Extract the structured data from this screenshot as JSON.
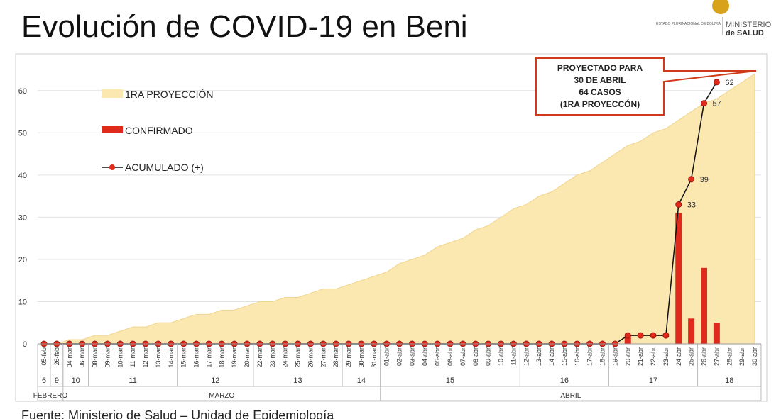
{
  "header": {
    "title": "Evolución de COVID-19 en Beni",
    "logo_small": "ESTADO PLURINACIONAL DE BOLIVIA",
    "logo_ministry": "MINISTERIO",
    "logo_health": "de SALUD"
  },
  "chart_data": {
    "type": "combo",
    "categories": [
      "05-feb",
      "26-feb",
      "04-mar",
      "06-mar",
      "08-mar",
      "09-mar",
      "10-mar",
      "11-mar",
      "12-mar",
      "13-mar",
      "14-mar",
      "15-mar",
      "16-mar",
      "17-mar",
      "18-mar",
      "19-mar",
      "20-mar",
      "22-mar",
      "23-mar",
      "24-mar",
      "25-mar",
      "26-mar",
      "27-mar",
      "28-mar",
      "29-mar",
      "30-mar",
      "31-mar",
      "01-abr",
      "02-abr",
      "03-abr",
      "04-abr",
      "05-abr",
      "06-abr",
      "07-abr",
      "08-abr",
      "09-abr",
      "10-abr",
      "11-abr",
      "12-abr",
      "13-abr",
      "14-abr",
      "15-abr",
      "16-abr",
      "17-abr",
      "18-abr",
      "19-abr",
      "20-abr",
      "21-abr",
      "22-abr",
      "23-abr",
      "24-abr",
      "25-abr",
      "26-abr",
      "27-abr",
      "28-abr",
      "29-abr",
      "30-abr"
    ],
    "series": [
      {
        "name": "1RA PROYECCIÓN",
        "type": "area",
        "color": "#fbe7b0",
        "values": [
          0,
          0,
          1,
          1,
          2,
          2,
          3,
          4,
          4,
          5,
          5,
          6,
          7,
          7,
          8,
          8,
          9,
          10,
          10,
          11,
          11,
          12,
          13,
          13,
          14,
          15,
          16,
          17,
          19,
          20,
          21,
          23,
          24,
          25,
          27,
          28,
          30,
          32,
          33,
          35,
          36,
          38,
          40,
          41,
          43,
          45,
          47,
          48,
          50,
          51,
          53,
          55,
          57,
          58,
          60,
          62,
          64
        ]
      },
      {
        "name": "CONFIRMADO",
        "type": "bar",
        "color": "#e02b1c",
        "values": [
          0,
          0,
          0,
          0,
          0,
          0,
          0,
          0,
          0,
          0,
          0,
          0,
          0,
          0,
          0,
          0,
          0,
          0,
          0,
          0,
          0,
          0,
          0,
          0,
          0,
          0,
          0,
          0,
          0,
          0,
          0,
          0,
          0,
          0,
          0,
          0,
          0,
          0,
          0,
          0,
          0,
          0,
          0,
          0,
          0,
          0,
          2,
          0,
          0,
          0,
          31,
          6,
          18,
          5,
          0,
          0,
          0
        ]
      },
      {
        "name": "ACUMULADO (+)",
        "type": "line",
        "color": "#e02b1c",
        "values": [
          0,
          0,
          0,
          0,
          0,
          0,
          0,
          0,
          0,
          0,
          0,
          0,
          0,
          0,
          0,
          0,
          0,
          0,
          0,
          0,
          0,
          0,
          0,
          0,
          0,
          0,
          0,
          0,
          0,
          0,
          0,
          0,
          0,
          0,
          0,
          0,
          0,
          0,
          0,
          0,
          0,
          0,
          0,
          0,
          0,
          0,
          2,
          2,
          2,
          2,
          33,
          39,
          57,
          62,
          null,
          null,
          null
        ],
        "value_labels": [
          null,
          null,
          null,
          null,
          null,
          null,
          null,
          null,
          null,
          null,
          null,
          null,
          null,
          null,
          null,
          null,
          null,
          null,
          null,
          null,
          null,
          null,
          null,
          null,
          null,
          null,
          null,
          null,
          null,
          null,
          null,
          null,
          null,
          null,
          null,
          null,
          null,
          null,
          null,
          null,
          null,
          null,
          null,
          null,
          null,
          null,
          null,
          null,
          null,
          null,
          "33",
          "39",
          "57",
          "62",
          null,
          null,
          null
        ]
      }
    ],
    "weeks": [
      {
        "label": "6",
        "count": 1
      },
      {
        "label": "9",
        "count": 1
      },
      {
        "label": "10",
        "count": 2
      },
      {
        "label": "11",
        "count": 7
      },
      {
        "label": "12",
        "count": 6
      },
      {
        "label": "13",
        "count": 7
      },
      {
        "label": "14",
        "count": 3
      },
      {
        "label": "15",
        "count": 11
      },
      {
        "label": "16",
        "count": 7
      },
      {
        "label": "17",
        "count": 7
      },
      {
        "label": "18",
        "count": 5
      }
    ],
    "months": [
      {
        "label": "FEBRERO",
        "count": 2
      },
      {
        "label": "MARZO",
        "count": 25
      },
      {
        "label": "ABRIL",
        "count": 30
      }
    ],
    "annotation": [
      "PROYECTADO PARA",
      "30 DE ABRIL",
      "64  CASOS",
      "(1RA PROYECCÓN)"
    ],
    "ylim": [
      0,
      65
    ],
    "yticks": [
      0,
      10,
      20,
      30,
      40,
      50,
      60
    ],
    "grid": true
  },
  "footer": "Fuente: Ministerio de Salud – Unidad de Epidemiología"
}
